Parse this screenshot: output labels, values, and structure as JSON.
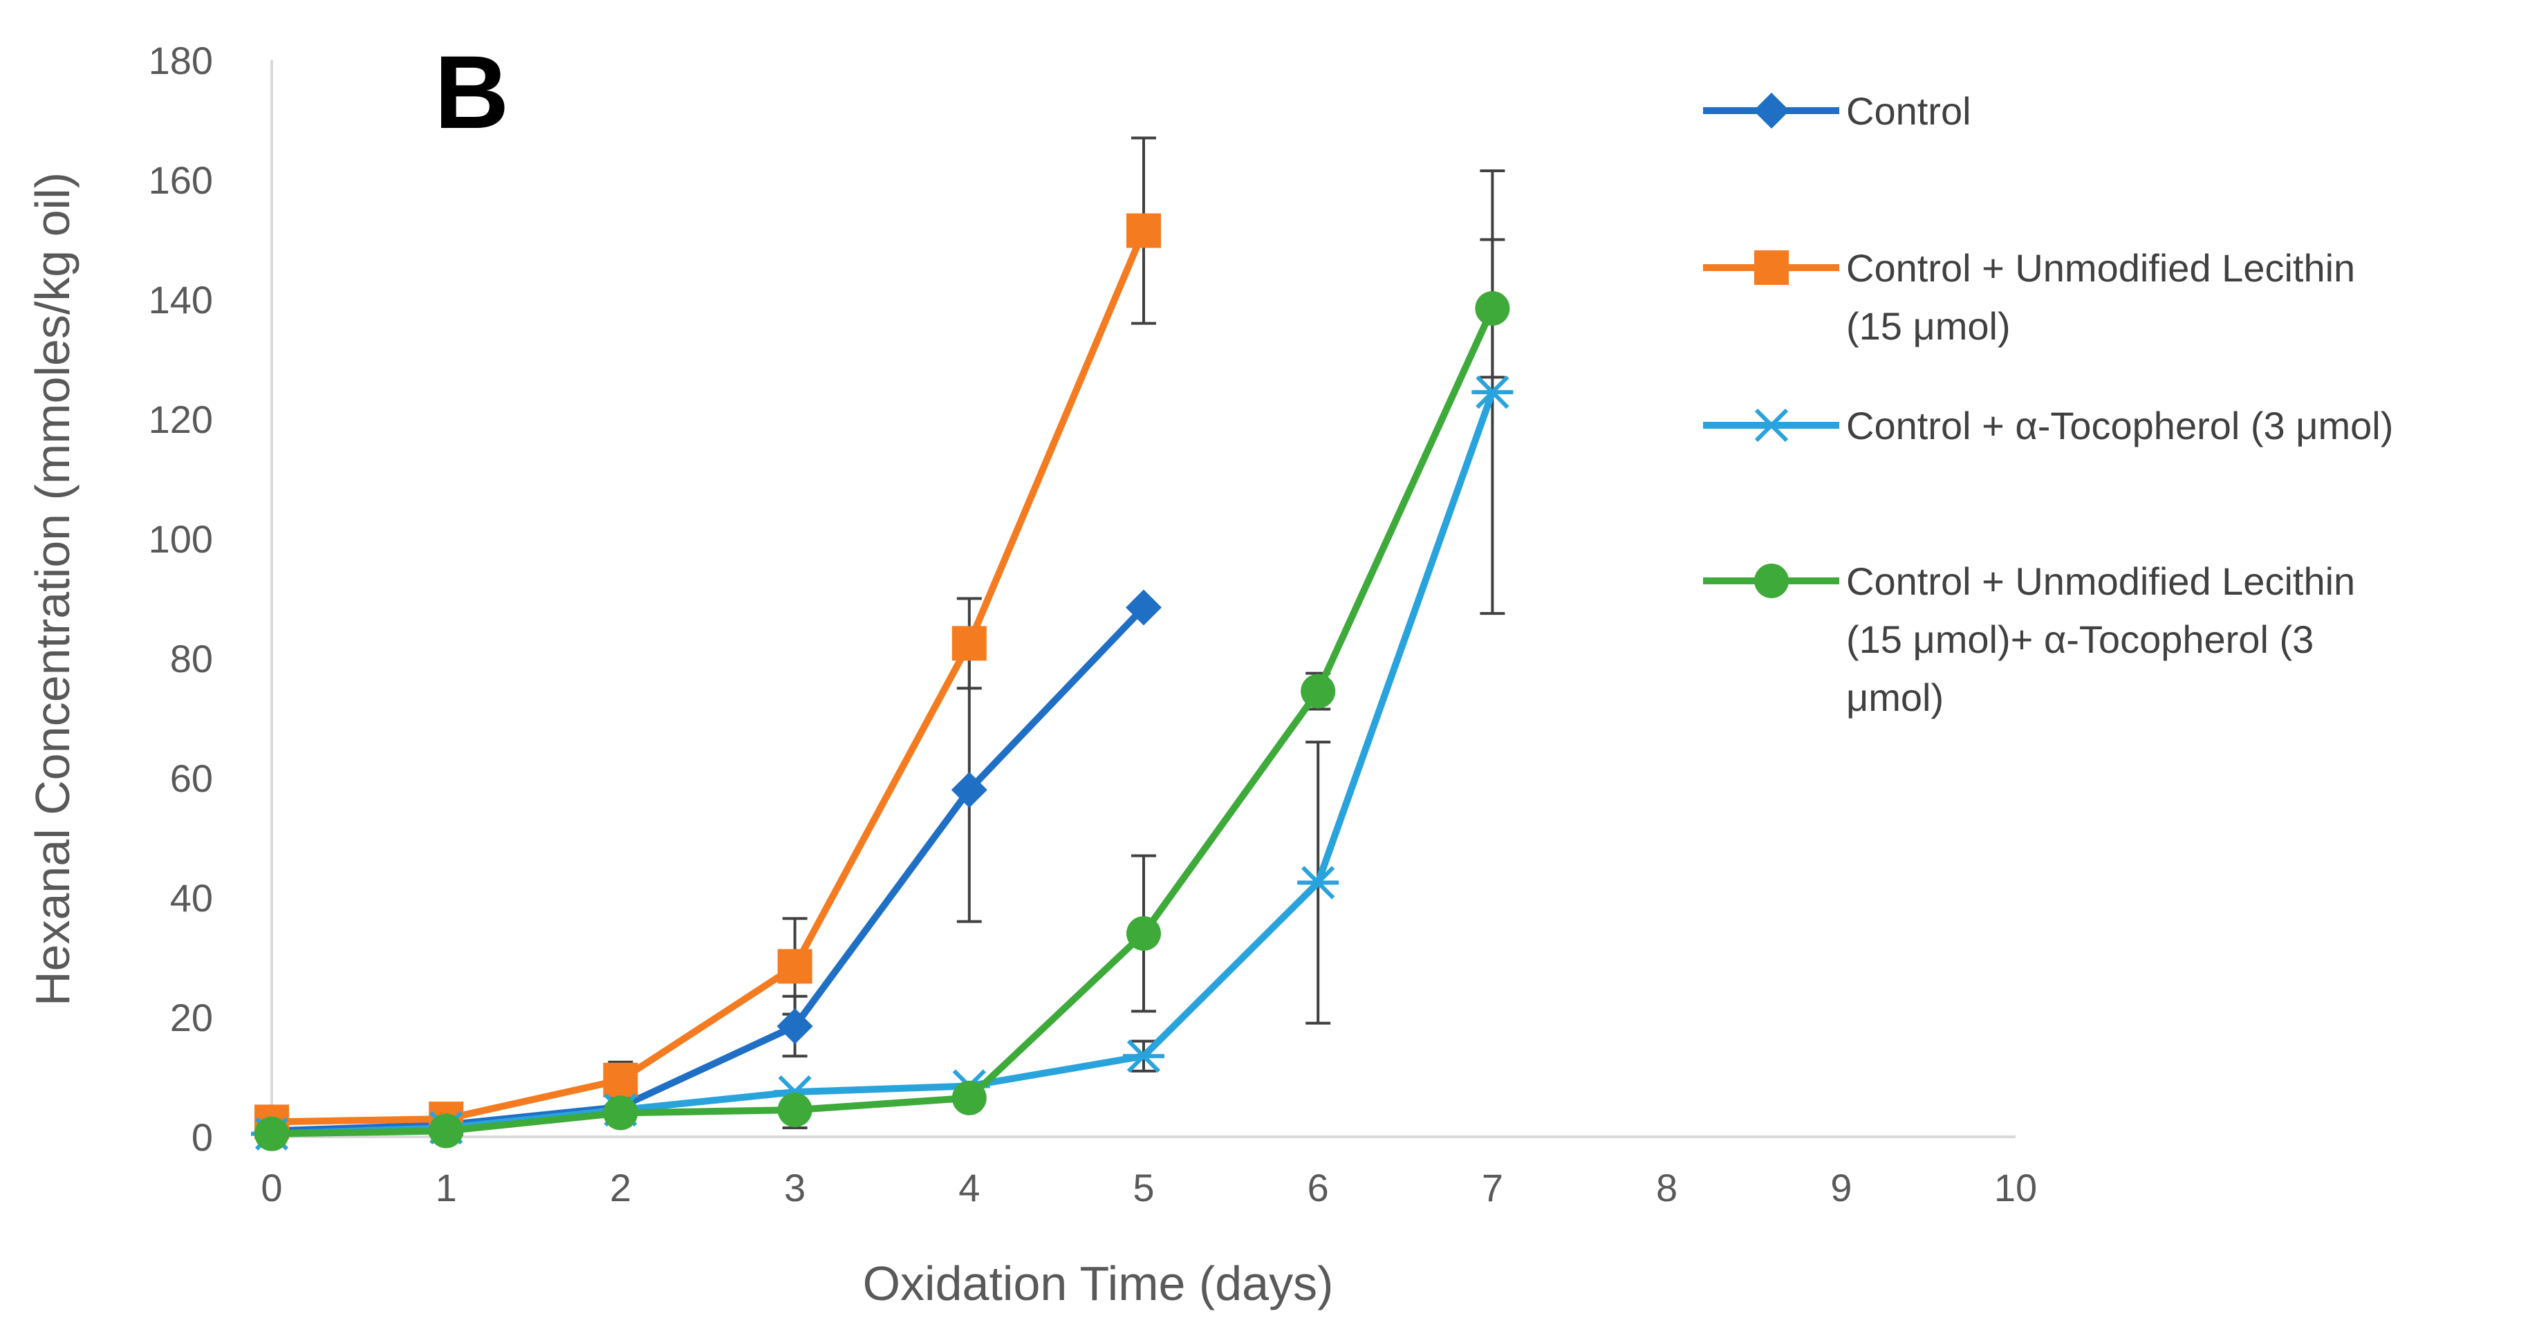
{
  "chart_data": {
    "type": "line",
    "panel_label": "B",
    "title": "",
    "xlabel": "Oxidation Time (days)",
    "ylabel": "Hexanal Concentration (mmoles/kg oil)",
    "xlim": [
      0,
      10
    ],
    "ylim": [
      0,
      180
    ],
    "x_ticks": [
      "0",
      "1",
      "2",
      "3",
      "4",
      "5",
      "6",
      "7",
      "8",
      "9",
      "10"
    ],
    "y_ticks": [
      "0",
      "20",
      "40",
      "60",
      "80",
      "100",
      "120",
      "140",
      "160",
      "180"
    ],
    "grid": false,
    "legend_position": "right",
    "series": [
      {
        "name": "Control",
        "legend_lines": [
          "Control"
        ],
        "color": "#1f6fc5",
        "marker": "diamond",
        "x": [
          0,
          1,
          2,
          3,
          4,
          5
        ],
        "y": [
          1,
          2,
          5,
          18.5,
          58,
          88.5
        ],
        "err": [
          0,
          0,
          0,
          5,
          22,
          0
        ]
      },
      {
        "name": "Control + Unmodified Lecithin (15 μmol)",
        "legend_lines": [
          "Control + Unmodified Lecithin",
          "(15 μmol)"
        ],
        "color": "#f47b20",
        "marker": "square",
        "x": [
          0,
          1,
          2,
          3,
          4,
          5
        ],
        "y": [
          2.5,
          3,
          9.5,
          28.5,
          82.5,
          151.5
        ],
        "err": [
          0,
          0,
          3,
          8,
          7.5,
          15.5
        ]
      },
      {
        "name": "Control + α-Tocopherol (3 μmol)",
        "legend_lines": [
          "Control + α-Tocopherol (3 μmol)"
        ],
        "color": "#29a3dc",
        "marker": "star",
        "x": [
          0,
          1,
          2,
          3,
          4,
          5,
          6,
          7
        ],
        "y": [
          0.5,
          1.5,
          4.5,
          7.5,
          8.5,
          13.5,
          42.5,
          124.5
        ],
        "err": [
          0,
          0,
          0,
          0,
          0,
          2.5,
          23.5,
          37
        ]
      },
      {
        "name": "Control + Unmodified Lecithin (15 μmol)+ α-Tocopherol (3 μmol)",
        "legend_lines": [
          "Control + Unmodified Lecithin",
          "(15 μmol)+ α-Tocopherol (3",
          "μmol)"
        ],
        "color": "#3daa3a",
        "marker": "circle",
        "x": [
          0,
          1,
          2,
          3,
          4,
          5,
          6,
          7
        ],
        "y": [
          0.5,
          1,
          4,
          4.5,
          6.5,
          34,
          74.5,
          138.5
        ],
        "err": [
          0,
          0,
          0,
          3,
          0,
          13,
          3,
          11.5
        ]
      }
    ]
  }
}
